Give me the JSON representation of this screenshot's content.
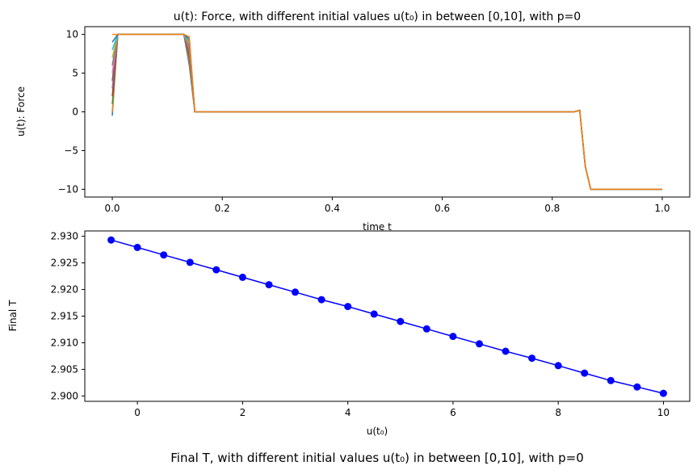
{
  "chart_data": [
    {
      "type": "line",
      "title": "u(t): Force, with different initial values u(t₀) in between [0,10], with p=0",
      "xlabel": "time t",
      "ylabel": "u(t): Force",
      "xlim": [
        -0.05,
        1.05
      ],
      "ylim": [
        -11,
        11
      ],
      "xticks": [
        "0.0",
        "0.2",
        "0.4",
        "0.6",
        "0.8",
        "1.0"
      ],
      "yticks": [
        "10",
        "5",
        "0",
        "−5",
        "−10"
      ],
      "grid": false,
      "line_colors": [
        "#1f77b4",
        "#ff7f0e",
        "#2ca02c",
        "#d62728",
        "#9467bd",
        "#8c564b",
        "#e377c2",
        "#7f7f7f",
        "#bcbd22",
        "#17becf"
      ],
      "series": [
        {
          "start": -0.5,
          "x": [
            0,
            0.01,
            0.13,
            0.14,
            0.15,
            0.84,
            0.85,
            0.86,
            0.87,
            1.0
          ],
          "y": [
            -0.5,
            10,
            10,
            6,
            0,
            0,
            0.2,
            -7,
            -10,
            -10
          ]
        },
        {
          "start": 0,
          "x": [
            0,
            0.01,
            0.13,
            0.14,
            0.15,
            0.84,
            0.85,
            0.86,
            0.87,
            1.0
          ],
          "y": [
            0,
            10,
            10,
            6.5,
            0,
            0,
            0.2,
            -7,
            -10,
            -10
          ]
        },
        {
          "start": 1,
          "x": [
            0,
            0.01,
            0.13,
            0.14,
            0.15,
            0.84,
            0.85,
            0.86,
            0.87,
            1.0
          ],
          "y": [
            1,
            10,
            10,
            7,
            0,
            0,
            0.2,
            -7,
            -10,
            -10
          ]
        },
        {
          "start": 2,
          "x": [
            0,
            0.01,
            0.13,
            0.14,
            0.15,
            0.84,
            0.85,
            0.86,
            0.87,
            1.0
          ],
          "y": [
            2,
            10,
            10,
            7.3,
            0,
            0,
            0.2,
            -7,
            -10,
            -10
          ]
        },
        {
          "start": 3,
          "x": [
            0,
            0.01,
            0.13,
            0.14,
            0.15,
            0.84,
            0.85,
            0.86,
            0.87,
            1.0
          ],
          "y": [
            3,
            10,
            10,
            7.6,
            0,
            0,
            0.2,
            -7,
            -10,
            -10
          ]
        },
        {
          "start": 4,
          "x": [
            0,
            0.01,
            0.13,
            0.14,
            0.15,
            0.84,
            0.85,
            0.86,
            0.87,
            1.0
          ],
          "y": [
            4,
            10,
            10,
            7.9,
            0,
            0,
            0.2,
            -7,
            -10,
            -10
          ]
        },
        {
          "start": 5,
          "x": [
            0,
            0.01,
            0.13,
            0.14,
            0.15,
            0.84,
            0.85,
            0.86,
            0.87,
            1.0
          ],
          "y": [
            5,
            10,
            10,
            8.2,
            0,
            0,
            0.2,
            -7,
            -10,
            -10
          ]
        },
        {
          "start": 6,
          "x": [
            0,
            0.01,
            0.13,
            0.14,
            0.15,
            0.84,
            0.85,
            0.86,
            0.87,
            1.0
          ],
          "y": [
            6,
            10,
            10,
            8.5,
            0,
            0,
            0.2,
            -7,
            -10,
            -10
          ]
        },
        {
          "start": 7,
          "x": [
            0,
            0.01,
            0.13,
            0.14,
            0.15,
            0.84,
            0.85,
            0.86,
            0.87,
            1.0
          ],
          "y": [
            7,
            10,
            10,
            8.8,
            0,
            0,
            0.2,
            -7,
            -10,
            -10
          ]
        },
        {
          "start": 8,
          "x": [
            0,
            0.01,
            0.13,
            0.14,
            0.15,
            0.84,
            0.85,
            0.86,
            0.87,
            1.0
          ],
          "y": [
            8,
            10,
            10,
            9.1,
            0,
            0,
            0.2,
            -7,
            -10,
            -10
          ]
        },
        {
          "start": 9,
          "x": [
            0,
            0.01,
            0.13,
            0.14,
            0.15,
            0.84,
            0.85,
            0.86,
            0.87,
            1.0
          ],
          "y": [
            9,
            10,
            10,
            9.4,
            0,
            0,
            0.2,
            -7,
            -10,
            -10
          ]
        },
        {
          "start": 10,
          "x": [
            0,
            0.01,
            0.13,
            0.14,
            0.15,
            0.84,
            0.85,
            0.86,
            0.87,
            1.0
          ],
          "y": [
            10,
            10,
            10,
            9.7,
            0,
            0,
            0.2,
            -7,
            -10,
            -10
          ]
        }
      ]
    },
    {
      "type": "line",
      "title": "Final T, with different initial values u(t₀) in between [0,10], with p=0",
      "xlabel": "u(t₀)",
      "ylabel": "Final T",
      "xlim": [
        -1,
        10.5
      ],
      "ylim": [
        2.899,
        2.931
      ],
      "xticks": [
        "0",
        "2",
        "4",
        "6",
        "8",
        "10"
      ],
      "yticks": [
        "2.930",
        "2.925",
        "2.920",
        "2.915",
        "2.910",
        "2.905",
        "2.900"
      ],
      "grid": false,
      "color": "#0000ff",
      "marker": "circle",
      "x": [
        -0.5,
        0,
        0.5,
        1,
        1.5,
        2,
        2.5,
        3,
        3.5,
        4,
        4.5,
        5,
        5.5,
        6,
        6.5,
        7,
        7.5,
        8,
        8.5,
        9,
        9.5,
        10
      ],
      "y": [
        2.9293,
        2.9279,
        2.9265,
        2.9251,
        2.9237,
        2.9223,
        2.9209,
        2.9195,
        2.9181,
        2.9168,
        2.9154,
        2.914,
        2.9126,
        2.9112,
        2.9098,
        2.9084,
        2.9071,
        2.9057,
        2.9043,
        2.9029,
        2.9017,
        2.9005
      ]
    }
  ]
}
